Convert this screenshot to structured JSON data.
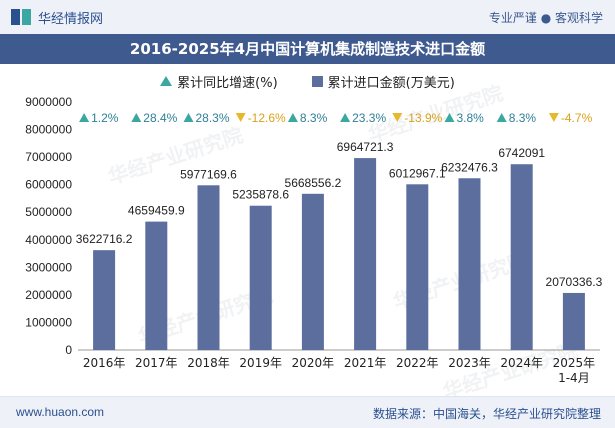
{
  "header": {
    "site_name": "华经情报网",
    "tagline": "专业严谨 ● 客观科学"
  },
  "chart_title": "2016-2025年4月中国计算机集成制造技术进口金额",
  "legend": {
    "growth_label": "累计同比增速(%)",
    "amount_label": "累计进口金额(万美元)"
  },
  "watermark": "华经产业研究院",
  "footer": {
    "url": "www.huaon.com",
    "source": "数据来源：中国海关，华经产业研究院整理"
  },
  "colors": {
    "bar": "#5c6e9e",
    "up": "#3aa8a0",
    "down": "#e6b82e"
  },
  "chart_data": {
    "type": "bar",
    "categories": [
      "2016年",
      "2017年",
      "2018年",
      "2019年",
      "2020年",
      "2021年",
      "2022年",
      "2023年",
      "2024年",
      "2025年\n1-4月"
    ],
    "values": [
      3622716.2,
      4659459.9,
      5977169.6,
      5235878.6,
      5668556.2,
      6964721.3,
      6012967.1,
      6232476.3,
      6742091,
      2070336.3
    ],
    "value_labels": [
      "3622716.2",
      "4659459.9",
      "5977169.6",
      "5235878.6",
      "5668556.2",
      "6964721.3",
      "6012967.1",
      "6232476.3",
      "6742091",
      "2070336.3"
    ],
    "growth": [
      1.2,
      28.4,
      28.3,
      -12.6,
      8.3,
      23.3,
      -13.9,
      3.8,
      8.3,
      -4.7
    ],
    "growth_labels": [
      "1.2%",
      "28.4%",
      "28.3%",
      "-12.6%",
      "8.3%",
      "23.3%",
      "-13.9%",
      "3.8%",
      "8.3%",
      "-4.7%"
    ],
    "ylim": [
      0,
      9000000
    ],
    "yticks": [
      "0",
      "1000000",
      "2000000",
      "3000000",
      "4000000",
      "5000000",
      "6000000",
      "7000000",
      "8000000",
      "9000000"
    ],
    "xlabel": "",
    "ylabel": ""
  }
}
